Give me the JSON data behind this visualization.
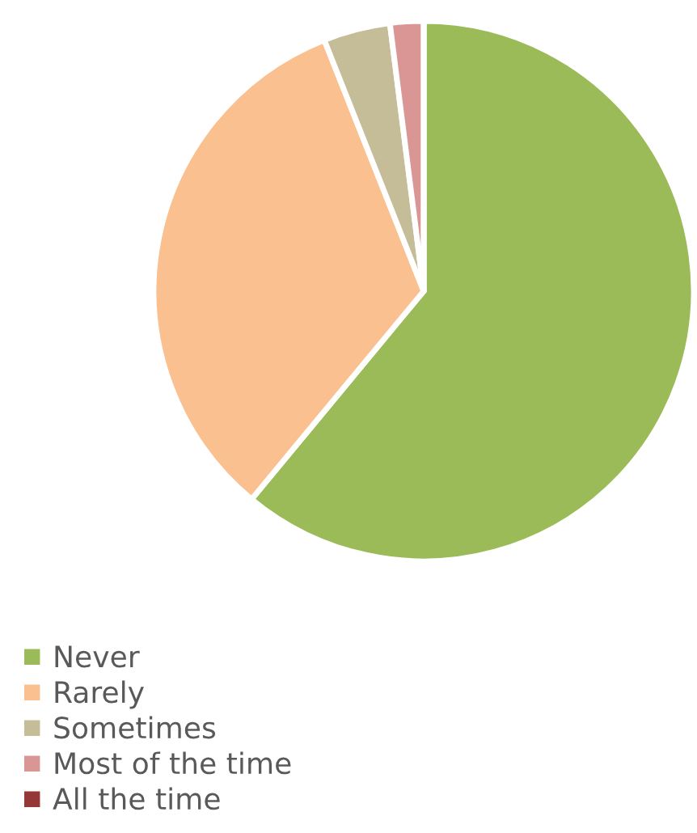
{
  "chart_data": {
    "type": "pie",
    "categories": [
      "Never",
      "Rarely",
      "Sometimes",
      "Most of the time",
      "All the time"
    ],
    "values": [
      61,
      33,
      4,
      2,
      0
    ],
    "colors": [
      "#9bbb59",
      "#fac090",
      "#c4bd97",
      "#d99694",
      "#953735"
    ],
    "legend": "bottom left"
  }
}
